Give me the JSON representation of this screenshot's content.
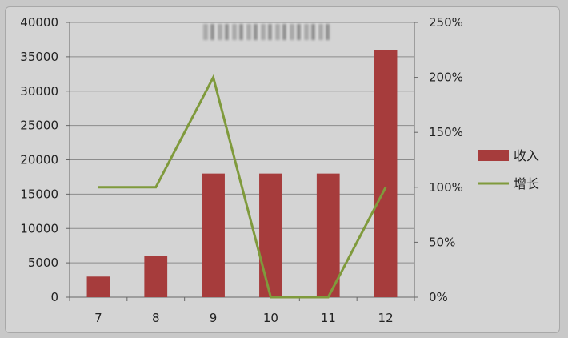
{
  "chart_data": {
    "type": "bar",
    "title": "",
    "categories": [
      "7",
      "8",
      "9",
      "10",
      "11",
      "12"
    ],
    "series": [
      {
        "name": "收入",
        "type": "bar",
        "axis": "left",
        "color": "#a63c3c",
        "values": [
          3000,
          6000,
          18000,
          18000,
          18000,
          36000
        ]
      },
      {
        "name": "增长",
        "type": "line",
        "axis": "right",
        "color": "#7f9a3c",
        "values": [
          100,
          100,
          200,
          0,
          0,
          100
        ]
      }
    ],
    "y_left": {
      "ylim": [
        0,
        40000
      ],
      "ticks": [
        "0",
        "5000",
        "10000",
        "15000",
        "20000",
        "25000",
        "30000",
        "35000",
        "40000"
      ]
    },
    "y_right": {
      "ylim": [
        0,
        250
      ],
      "ticks": [
        "0%",
        "50%",
        "100%",
        "150%",
        "200%",
        "250%"
      ]
    },
    "grid": true,
    "legend": "right"
  }
}
